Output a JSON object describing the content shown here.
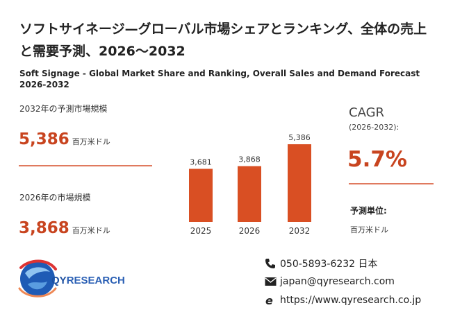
{
  "title_jp": "ソフトサイネージ—グローバル市場シェアとランキング、全体の売上と需要予測、2026～2032",
  "title_en": "Soft Signage - Global Market Share and Ranking, Overall Sales and Demand Forecast 2026-2032",
  "left_panel": {
    "label_2032": "2032年の予測市場規模",
    "value_2032": "5,386",
    "unit_2032": "百万米ドル",
    "label_2026": "2026年の市場規模",
    "value_2026": "3,868",
    "unit_2026": "百万米ドル"
  },
  "cagr": {
    "title": "CAGR",
    "range": "(2026-2032):",
    "value": "5.7%",
    "unit_title": "予測単位:",
    "unit_value": "百万米ドル"
  },
  "contact": {
    "phone": "050-5893-6232 日本",
    "email": "japan@qyresearch.com",
    "website": "https://www.qyresearch.co.jp"
  },
  "logo": {
    "text_q": "QY",
    "text_r": "RESEARCH"
  },
  "colors": {
    "accent": "#c8441f",
    "bar": "#d94f23",
    "rule": "#e07a5f"
  },
  "chart_data": {
    "type": "bar",
    "categories": [
      "2025",
      "2026",
      "2032"
    ],
    "values": [
      3681,
      3868,
      5386
    ],
    "data_labels": [
      "3,681",
      "3,868",
      "5,386"
    ],
    "ylim": [
      0,
      5386
    ],
    "grid": false,
    "legend": "none"
  }
}
